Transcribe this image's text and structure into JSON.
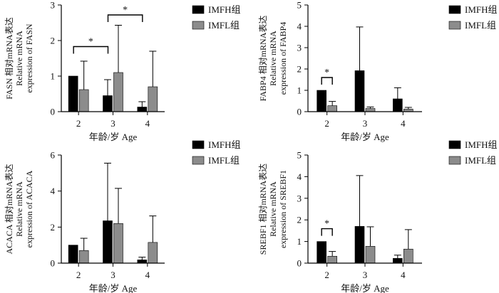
{
  "chart_data": [
    {
      "type": "bar",
      "categories": [
        "2",
        "3",
        "4"
      ],
      "series": [
        {
          "name": "IMFH组",
          "values": [
            1.0,
            0.45,
            0.13
          ],
          "errors": [
            0.0,
            0.45,
            0.15
          ]
        },
        {
          "name": "IMFL组",
          "values": [
            0.62,
            1.1,
            0.7
          ],
          "errors": [
            0.8,
            1.33,
            1.0
          ]
        }
      ],
      "yticks": [
        0,
        1,
        2,
        3
      ],
      "ylim": [
        0,
        3
      ],
      "ylabel_lines": [
        "FASN 相对mRNA表达",
        "Relative mRNA",
        "expression of FASN"
      ],
      "xlabel": "年龄/岁 Age",
      "significance": [
        {
          "from": 0,
          "to": 1,
          "label": "*"
        },
        {
          "from": 1,
          "to": 2,
          "label": "*"
        }
      ]
    },
    {
      "type": "bar",
      "categories": [
        "2",
        "3",
        "4"
      ],
      "series": [
        {
          "name": "IMFH组",
          "values": [
            1.0,
            1.92,
            0.6
          ],
          "errors": [
            0.0,
            2.05,
            0.52
          ]
        },
        {
          "name": "IMFL组",
          "values": [
            0.28,
            0.15,
            0.12
          ],
          "errors": [
            0.2,
            0.07,
            0.08
          ]
        }
      ],
      "yticks": [
        0,
        1,
        2,
        3,
        4,
        5
      ],
      "ylim": [
        0,
        5
      ],
      "ylabel_lines": [
        "FABP4 相对mRNA表达",
        "Relative mRNA",
        "expression of FABP4"
      ],
      "xlabel": "年龄/岁 Age",
      "significance": [
        {
          "from": 0,
          "to": 0,
          "label": "*"
        }
      ]
    },
    {
      "type": "bar",
      "categories": [
        "2",
        "3",
        "4"
      ],
      "series": [
        {
          "name": "IMFH组",
          "values": [
            1.0,
            2.35,
            0.18
          ],
          "errors": [
            0.0,
            3.2,
            0.15
          ]
        },
        {
          "name": "IMFL组",
          "values": [
            0.7,
            2.2,
            1.15
          ],
          "errors": [
            0.68,
            1.95,
            1.47
          ]
        }
      ],
      "yticks": [
        0,
        2,
        4,
        6
      ],
      "ylim": [
        0,
        6
      ],
      "ylabel_lines": [
        "ACACA 相对mRNA表达",
        "Relative mRNA",
        "expression of ACACA"
      ],
      "xlabel": "年龄/岁 Age",
      "significance": []
    },
    {
      "type": "bar",
      "categories": [
        "2",
        "3",
        "4"
      ],
      "series": [
        {
          "name": "IMFH组",
          "values": [
            1.0,
            1.7,
            0.22
          ],
          "errors": [
            0.0,
            2.35,
            0.15
          ]
        },
        {
          "name": "IMFL组",
          "values": [
            0.32,
            0.78,
            0.65
          ],
          "errors": [
            0.22,
            0.9,
            0.9
          ]
        }
      ],
      "yticks": [
        0,
        1,
        2,
        3,
        4,
        5
      ],
      "ylim": [
        0,
        5
      ],
      "ylabel_lines": [
        "SREBF1 相对mRNA表达",
        "Relative mRNA",
        "expression of SREBF1"
      ],
      "xlabel": "年龄/岁 Age",
      "significance": [
        {
          "from": 0,
          "to": 0,
          "label": "*"
        }
      ]
    }
  ],
  "colors": {
    "IMFH组": "#000000",
    "IMFL组": "#8c8c8c"
  }
}
